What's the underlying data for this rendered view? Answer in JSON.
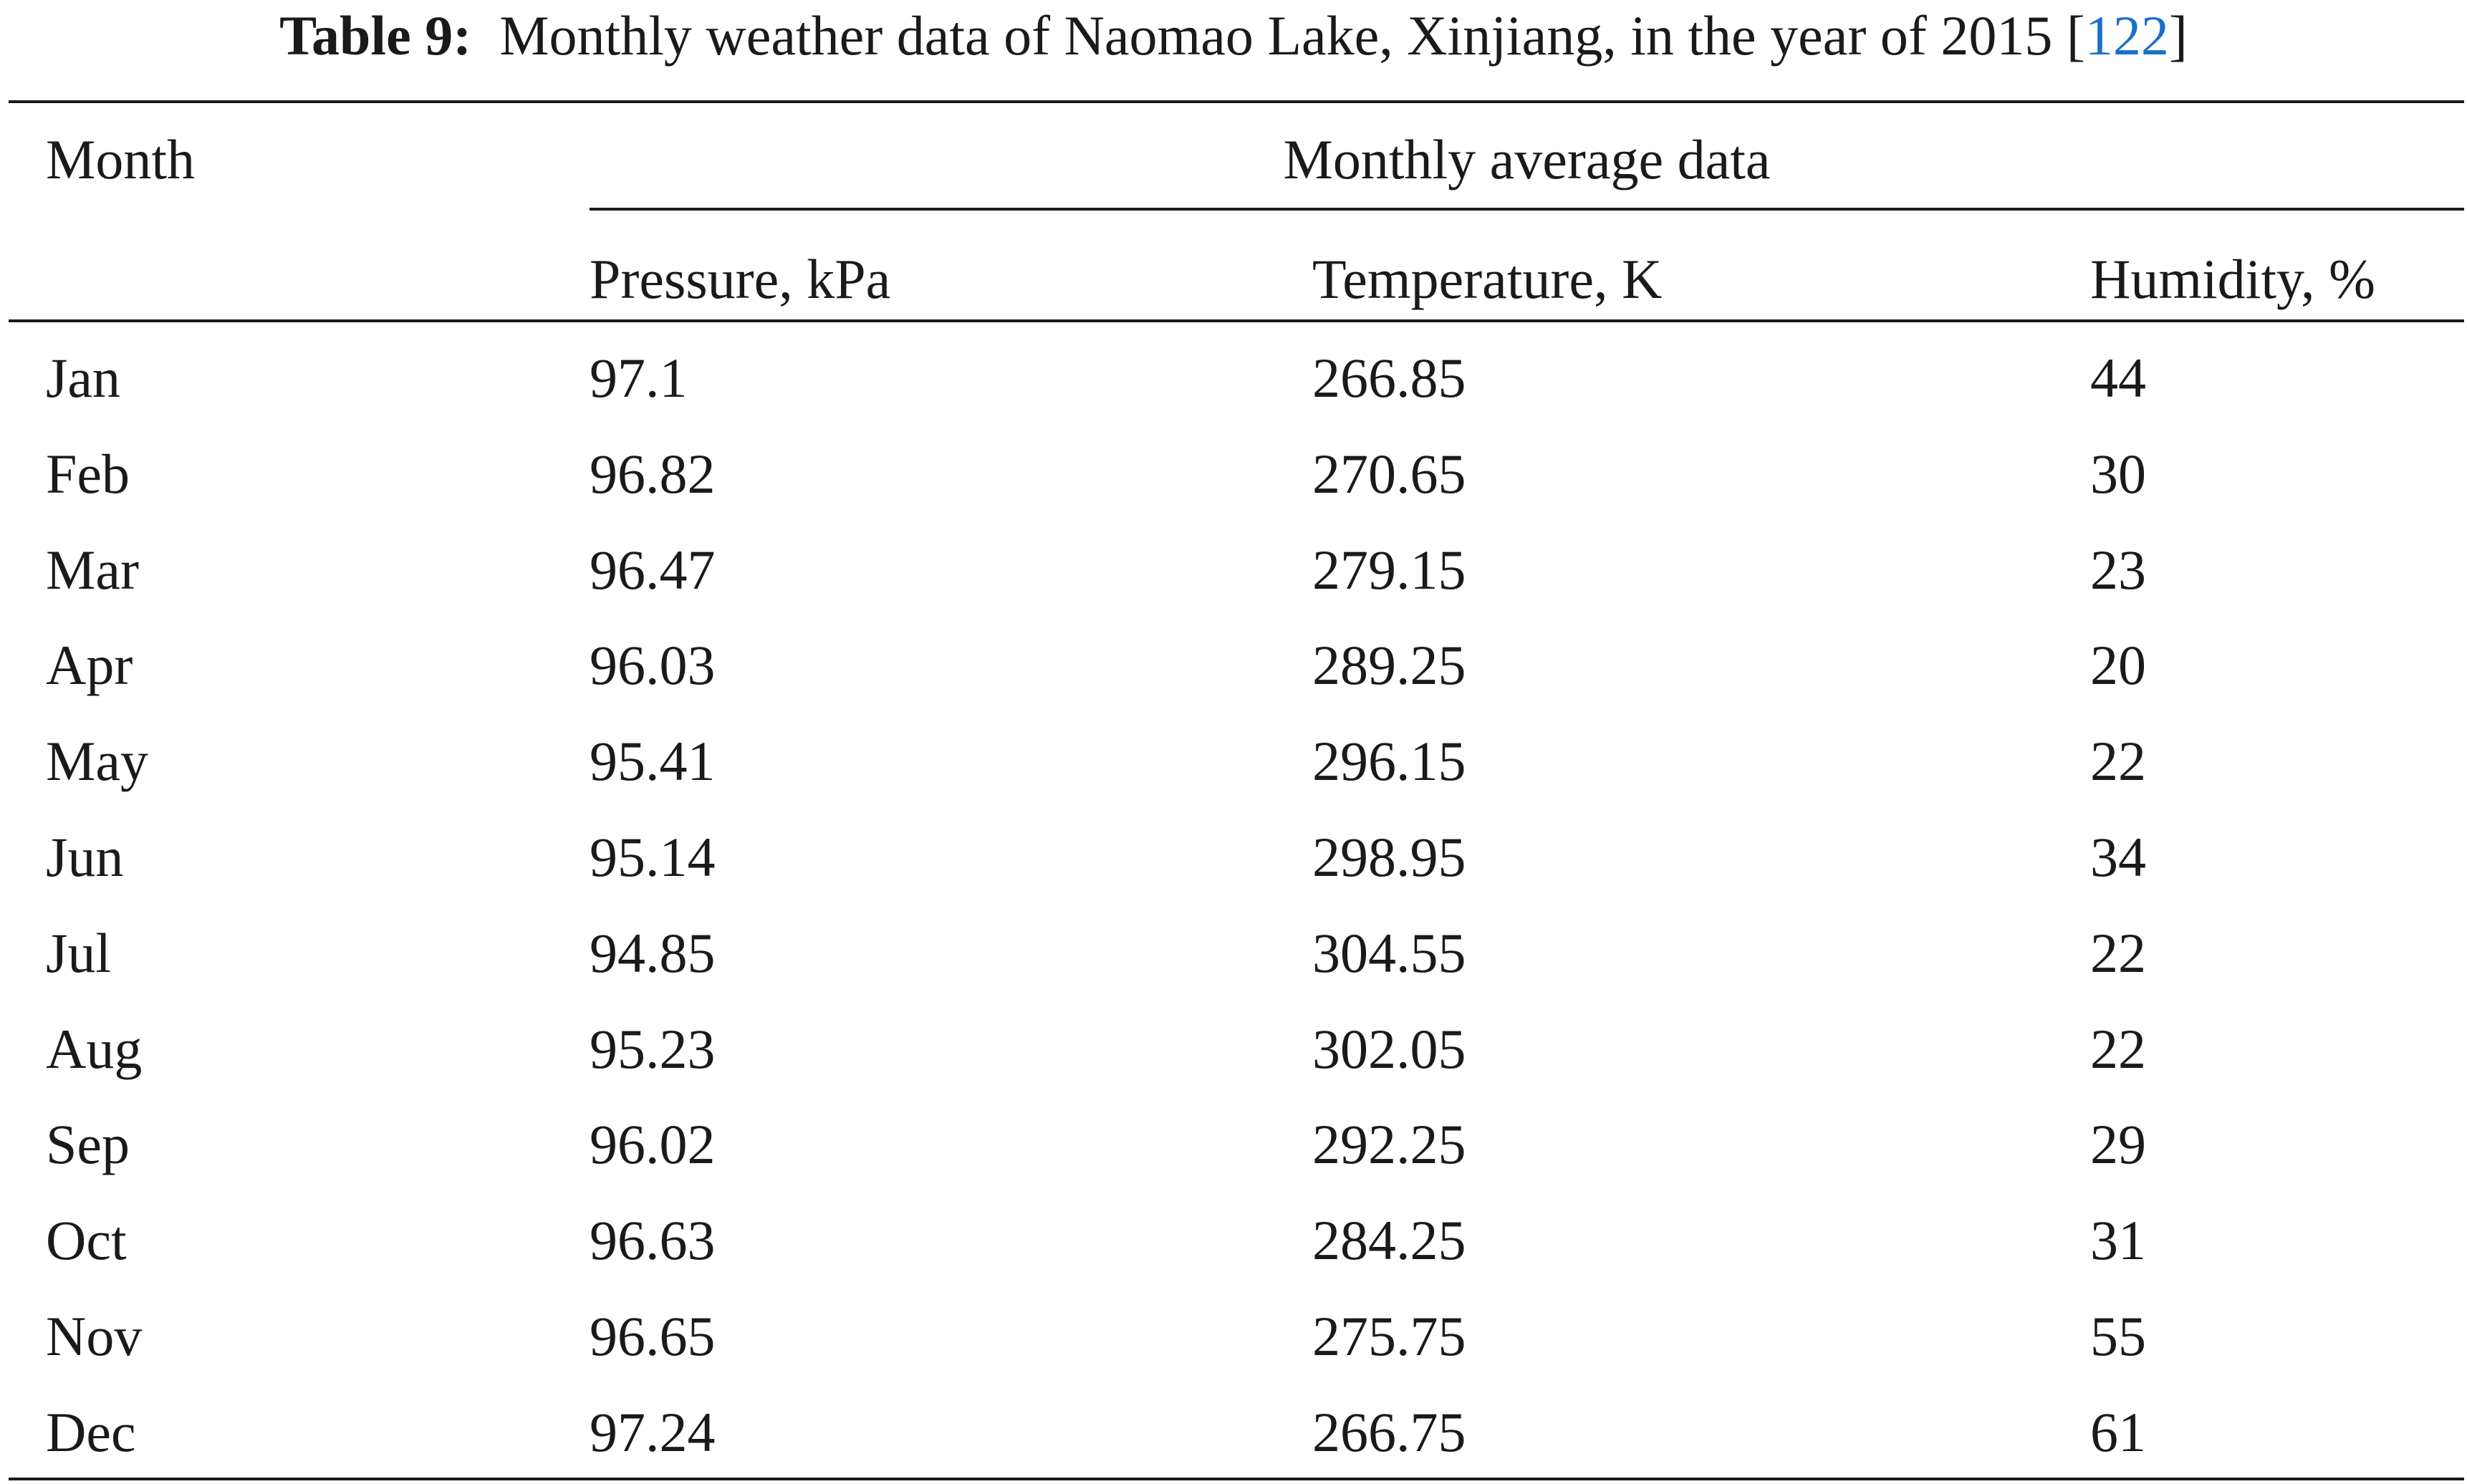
{
  "caption": {
    "label": "Table 9:",
    "text": "Monthly weather data of Naomao Lake, Xinjiang, in the year of 2015",
    "ref_open": "[",
    "ref": "122",
    "ref_close": "]"
  },
  "table": {
    "stub_header": "Month",
    "group_header": "Monthly average data",
    "columns": [
      "Pressure, kPa",
      "Temperature, K",
      "Humidity, %"
    ],
    "rows": [
      {
        "month": "Jan",
        "pressure": "97.1",
        "temperature": "266.85",
        "humidity": "44"
      },
      {
        "month": "Feb",
        "pressure": "96.82",
        "temperature": "270.65",
        "humidity": "30"
      },
      {
        "month": "Mar",
        "pressure": "96.47",
        "temperature": "279.15",
        "humidity": "23"
      },
      {
        "month": "Apr",
        "pressure": "96.03",
        "temperature": "289.25",
        "humidity": "20"
      },
      {
        "month": "May",
        "pressure": "95.41",
        "temperature": "296.15",
        "humidity": "22"
      },
      {
        "month": "Jun",
        "pressure": "95.14",
        "temperature": "298.95",
        "humidity": "34"
      },
      {
        "month": "Jul",
        "pressure": "94.85",
        "temperature": "304.55",
        "humidity": "22"
      },
      {
        "month": "Aug",
        "pressure": "95.23",
        "temperature": "302.05",
        "humidity": "22"
      },
      {
        "month": "Sep",
        "pressure": "96.02",
        "temperature": "292.25",
        "humidity": "29"
      },
      {
        "month": "Oct",
        "pressure": "96.63",
        "temperature": "284.25",
        "humidity": "31"
      },
      {
        "month": "Nov",
        "pressure": "96.65",
        "temperature": "275.75",
        "humidity": "55"
      },
      {
        "month": "Dec",
        "pressure": "97.24",
        "temperature": "266.75",
        "humidity": "61"
      }
    ]
  },
  "colors": {
    "text": "#1a1a1a",
    "ref_link": "#1a6fc9",
    "background": "#ffffff"
  }
}
